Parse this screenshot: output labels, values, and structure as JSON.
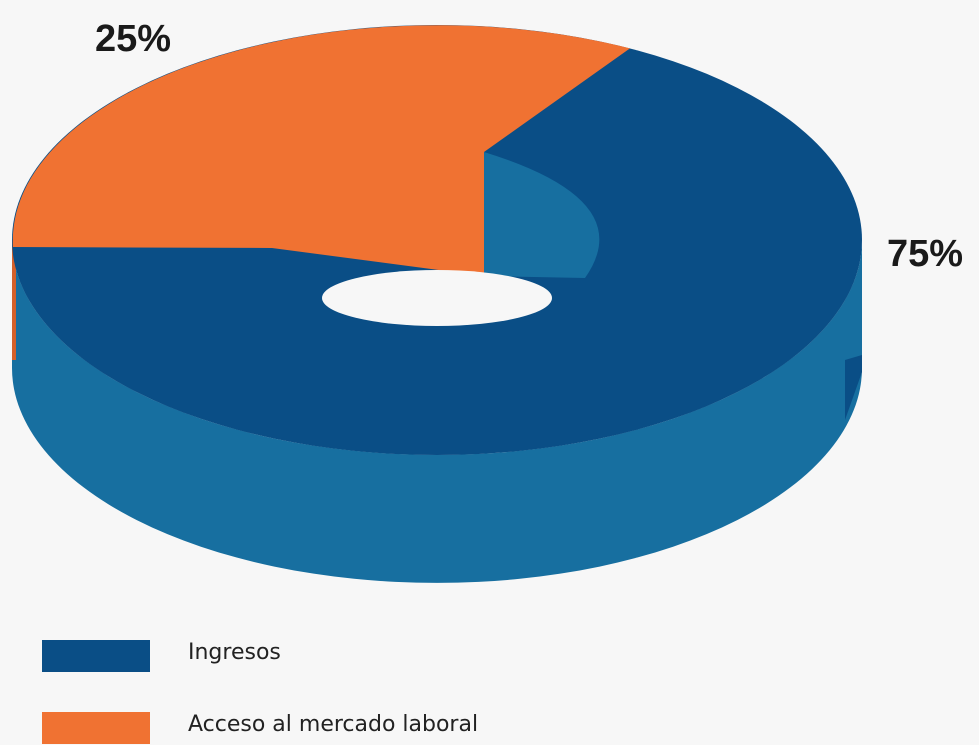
{
  "chart_data": {
    "type": "pie",
    "style": "3d-donut",
    "categories": [
      "Ingresos",
      "Acceso al mercado laboral"
    ],
    "values": [
      75,
      25
    ],
    "value_labels": [
      "75%",
      "25%"
    ],
    "colors": {
      "Ingresos": "#0a4e86",
      "Ingresos_side": "#176fa0",
      "Acceso al mercado laboral": "#f07232",
      "Acceso al mercado laboral_side": "#d4602a"
    },
    "legend": {
      "placement": "bottom-left",
      "items": [
        {
          "label": "Ingresos",
          "color": "#0a4e86"
        },
        {
          "label": "Acceso al mercado laboral",
          "color": "#f07232"
        }
      ]
    }
  }
}
